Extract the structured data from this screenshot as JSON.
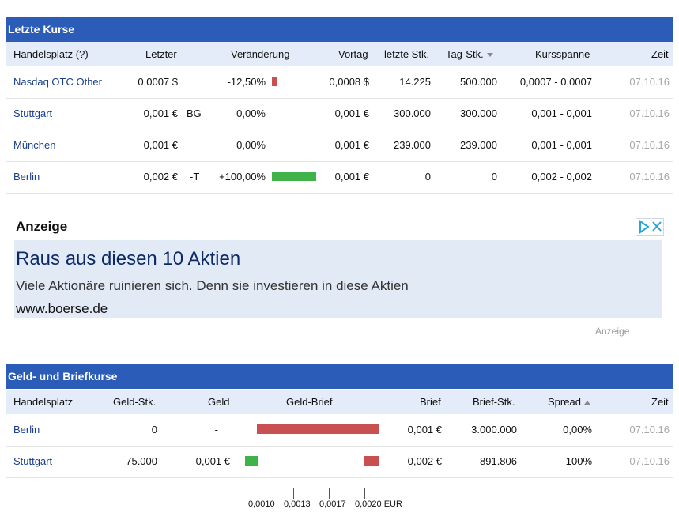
{
  "kurse": {
    "title": "Letzte Kurse",
    "headers": {
      "handelsplatz": "Handelsplatz (?)",
      "letzter": "Letzter",
      "veraenderung": "Veränderung",
      "vortag": "Vortag",
      "letzte_stk": "letzte Stk.",
      "tag_stk": "Tag-Stk.",
      "kursspanne": "Kursspanne",
      "zeit": "Zeit"
    },
    "rows": [
      {
        "platz": "Nasdaq OTC Other",
        "letzter": "0,0007 $",
        "flag": "",
        "veraenderung": "-12,50%",
        "change_pct": -12.5,
        "vortag": "0,0008 $",
        "letzte_stk": "14.225",
        "tag_stk": "500.000",
        "spanne": "0,0007 - 0,0007",
        "zeit": "07.10.16"
      },
      {
        "platz": "Stuttgart",
        "letzter": "0,001 €",
        "flag": "BG",
        "veraenderung": "0,00%",
        "change_pct": 0,
        "vortag": "0,001 €",
        "letzte_stk": "300.000",
        "tag_stk": "300.000",
        "spanne": "0,001 - 0,001",
        "zeit": "07.10.16"
      },
      {
        "platz": "München",
        "letzter": "0,001 €",
        "flag": "",
        "veraenderung": "0,00%",
        "change_pct": 0,
        "vortag": "0,001 €",
        "letzte_stk": "239.000",
        "tag_stk": "239.000",
        "spanne": "0,001 - 0,001",
        "zeit": "07.10.16"
      },
      {
        "platz": "Berlin",
        "letzter": "0,002 €",
        "flag": "-T",
        "veraenderung": "+100,00%",
        "change_pct": 100,
        "vortag": "0,001 €",
        "letzte_stk": "0",
        "tag_stk": "0",
        "spanne": "0,002 - 0,002",
        "zeit": "07.10.16"
      }
    ]
  },
  "ad": {
    "label": "Anzeige",
    "title": "Raus aus diesen 10 Aktien",
    "description": "Viele Aktionäre ruinieren sich. Denn sie investieren in diese Aktien",
    "url": "www.boerse.de",
    "footer": "Anzeige",
    "icons": [
      "adchoices-icon",
      "close-icon"
    ]
  },
  "geldbrief": {
    "title": "Geld- und Briefkurse",
    "headers": {
      "handelsplatz": "Handelsplatz",
      "geld_stk": "Geld-Stk.",
      "geld": "Geld",
      "geld_brief": "Geld-Brief",
      "brief": "Brief",
      "brief_stk": "Brief-Stk.",
      "spread": "Spread",
      "zeit": "Zeit"
    },
    "rows": [
      {
        "platz": "Berlin",
        "geld_stk": "0",
        "geld": "-",
        "brief": "0,001 €",
        "brief_stk": "3.000.000",
        "spread": "0,00%",
        "zeit": "07.10.16"
      },
      {
        "platz": "Stuttgart",
        "geld_stk": "75.000",
        "geld": "0,001 €",
        "brief": "0,002 €",
        "brief_stk": "891.806",
        "spread": "100%",
        "zeit": "07.10.16"
      }
    ],
    "axis_ticks": [
      "0,0010",
      "0,0013",
      "0,0017",
      "0,0020 EUR"
    ]
  },
  "colors": {
    "header_bar": "#2a5cb8",
    "header_row": "#e3ecf8",
    "negative": "#c85050",
    "positive": "#3fb34a",
    "link": "#1a3e8c"
  }
}
